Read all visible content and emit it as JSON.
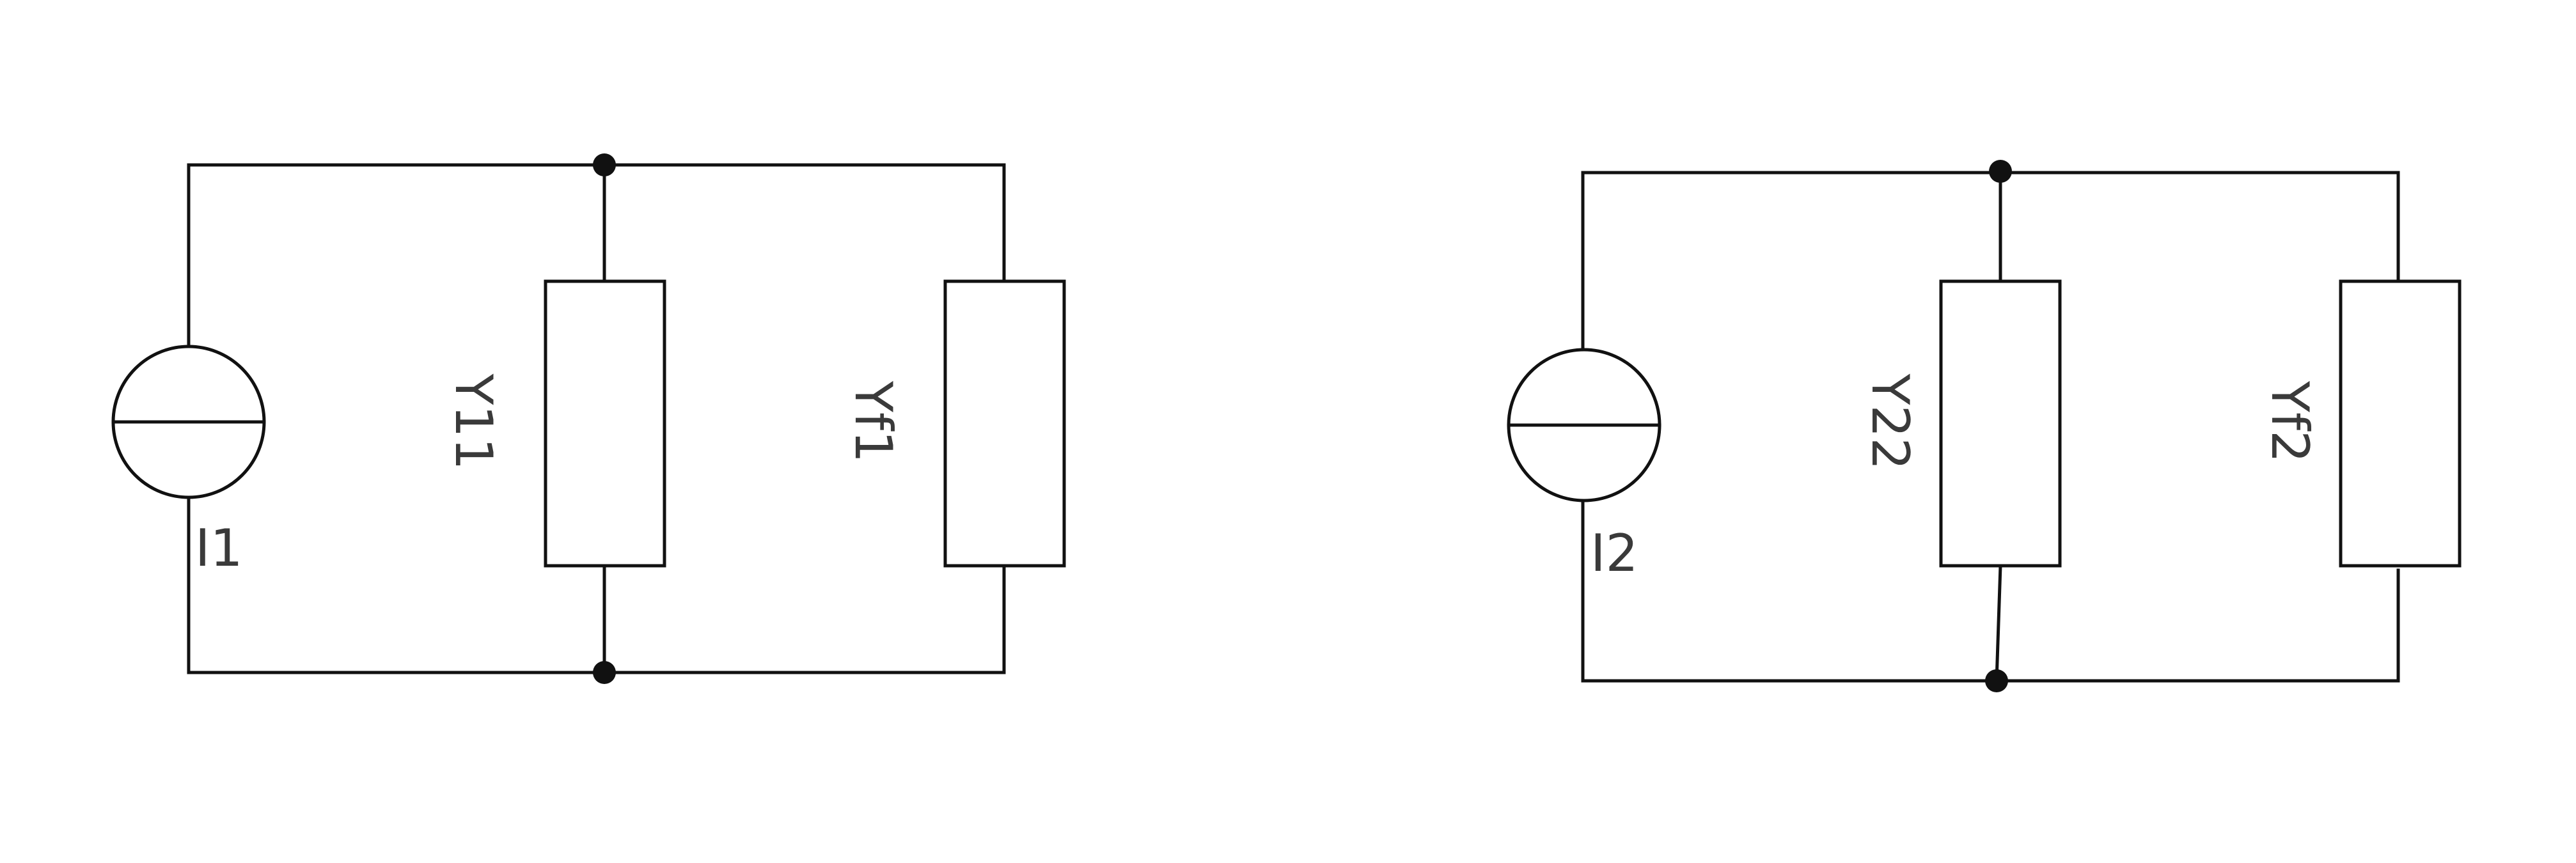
{
  "diagram": {
    "circuits": [
      {
        "source_label": "I1",
        "branch_labels": [
          "Y11",
          "Yf1"
        ]
      },
      {
        "source_label": "I2",
        "branch_labels": [
          "Y22",
          "Yf2"
        ]
      }
    ]
  }
}
